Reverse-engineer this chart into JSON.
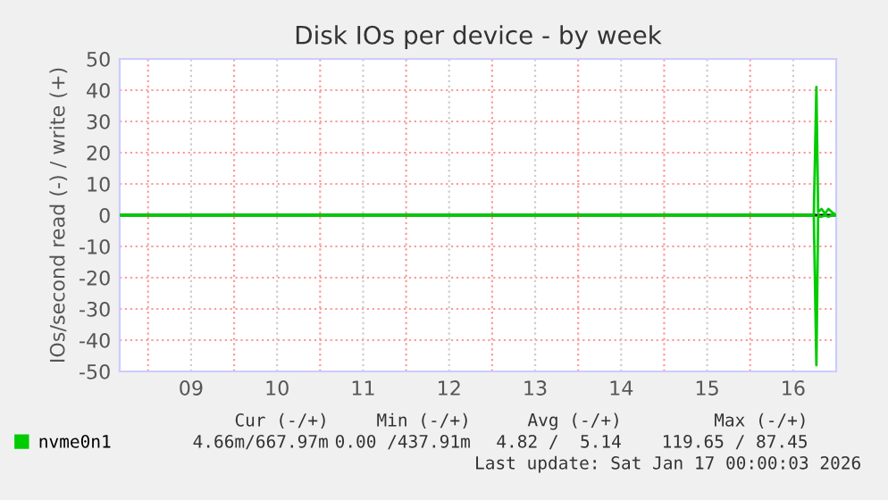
{
  "chart_data": {
    "type": "line",
    "title": "Disk IOs per device - by week",
    "ylabel": "IOs/second read (-) / write (+)",
    "series": [
      {
        "name": "nvme0n1",
        "color": "#00cc00",
        "x": [
          8.67,
          16.74,
          16.77,
          16.79,
          16.83,
          16.87,
          16.91,
          16.95,
          17.0
        ],
        "values": [
          0,
          0,
          41,
          1,
          2,
          0.5,
          2,
          1,
          0
        ]
      },
      {
        "color": "#00cc00",
        "x": [
          8.67,
          16.74,
          16.77,
          16.79,
          16.83,
          16.87,
          16.91,
          16.95,
          17.0
        ],
        "values": [
          0,
          0,
          -48,
          0,
          -0.5,
          0,
          -0.5,
          0,
          0
        ]
      }
    ],
    "xlim": [
      8.67,
      17.0
    ],
    "xticks": [
      {
        "value": 9,
        "label": null
      },
      {
        "value": 9.5,
        "label": "09"
      },
      {
        "value": 10,
        "label": null
      },
      {
        "value": 10.5,
        "label": "10"
      },
      {
        "value": 11,
        "label": null
      },
      {
        "value": 11.5,
        "label": "11"
      },
      {
        "value": 12,
        "label": null
      },
      {
        "value": 12.5,
        "label": "12"
      },
      {
        "value": 13,
        "label": null
      },
      {
        "value": 13.5,
        "label": "13"
      },
      {
        "value": 14,
        "label": null
      },
      {
        "value": 14.5,
        "label": "14"
      },
      {
        "value": 15,
        "label": null
      },
      {
        "value": 15.5,
        "label": "15"
      },
      {
        "value": 16,
        "label": null
      },
      {
        "value": 16.5,
        "label": "16"
      }
    ],
    "ylim": [
      -50,
      50
    ],
    "yticks": [
      -50,
      -40,
      -30,
      -20,
      -10,
      0,
      10,
      20,
      30,
      40,
      50
    ],
    "ref_lines": [
      {
        "axis": "y",
        "value": 0,
        "color": "#000000"
      }
    ],
    "grid": true,
    "legend": "bottom left",
    "marker": "none",
    "line_style": "solid",
    "annotations": [
      "Cur (-/+)",
      "Min (-/+)",
      "Avg (-/+)",
      "Max (-/+)",
      "4.66m/667.97m",
      "0.00 /437.91m",
      "4.82 /  5.14",
      "119.65 / 87.45",
      "Last update: Sat Jan 17 00:00:03 2026"
    ]
  }
}
